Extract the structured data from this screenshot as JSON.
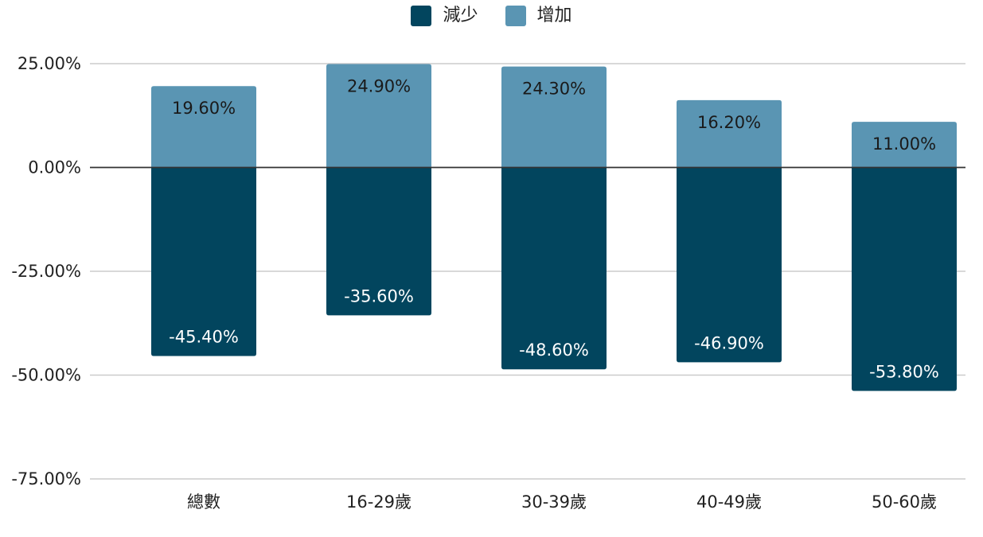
{
  "chart_data": {
    "type": "bar",
    "stacked": true,
    "categories": [
      "總數",
      "16-29歲",
      "30-39歲",
      "40-49歲",
      "50-60歲"
    ],
    "series": [
      {
        "name": "減少",
        "values": [
          -45.4,
          -35.6,
          -48.6,
          -46.9,
          -53.8
        ],
        "labels": [
          "-45.40%",
          "-35.60%",
          "-48.60%",
          "-46.90%",
          "-53.80%"
        ],
        "color": "#02455E"
      },
      {
        "name": "增加",
        "values": [
          19.6,
          24.9,
          24.3,
          16.2,
          11.0
        ],
        "labels": [
          "19.60%",
          "24.90%",
          "24.30%",
          "16.20%",
          "11.00%"
        ],
        "color": "#5A95B3"
      }
    ],
    "ylim": [
      -75,
      25
    ],
    "yticks": [
      25,
      0,
      -25,
      -50,
      -75
    ],
    "ytick_labels": [
      "25.00%",
      "0.00%",
      "-25.00%",
      "-50.00%",
      "-75.00%"
    ],
    "grid": true,
    "legend_position": "top-center"
  }
}
